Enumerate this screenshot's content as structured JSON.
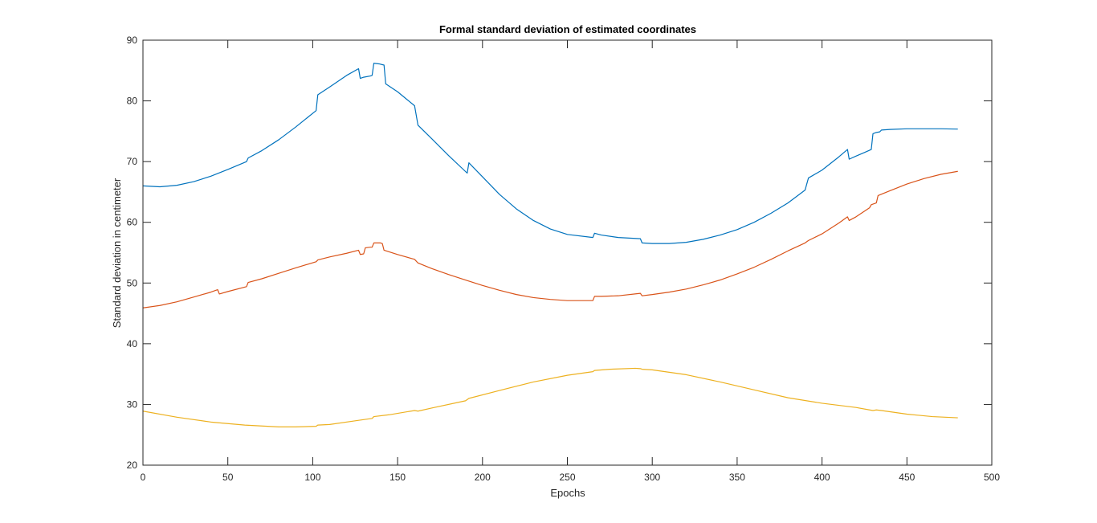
{
  "chart_data": {
    "type": "line",
    "title": "Formal standard deviation of estimated coordinates",
    "xlabel": "Epochs",
    "ylabel": "Standard deviation in centimeter",
    "xlim": [
      0,
      500
    ],
    "ylim": [
      20,
      90
    ],
    "xticks": [
      0,
      50,
      100,
      150,
      200,
      250,
      300,
      350,
      400,
      450,
      500
    ],
    "yticks": [
      20,
      30,
      40,
      50,
      60,
      70,
      80,
      90
    ],
    "grid": false,
    "box": true,
    "series": [
      {
        "color": "#0072BD",
        "points": [
          [
            0,
            66.0
          ],
          [
            10,
            65.85
          ],
          [
            20,
            66.1
          ],
          [
            30,
            66.7
          ],
          [
            40,
            67.6
          ],
          [
            50,
            68.7
          ],
          [
            61,
            70.0
          ],
          [
            62,
            70.6
          ],
          [
            70,
            71.8
          ],
          [
            80,
            73.6
          ],
          [
            90,
            75.7
          ],
          [
            102,
            78.4
          ],
          [
            103,
            81.0
          ],
          [
            110,
            82.3
          ],
          [
            120,
            84.2
          ],
          [
            127,
            85.3
          ],
          [
            128,
            83.7
          ],
          [
            130,
            83.9
          ],
          [
            134,
            84.1
          ],
          [
            135,
            84.2
          ],
          [
            136,
            86.2
          ],
          [
            139,
            86.1
          ],
          [
            142,
            85.9
          ],
          [
            143,
            82.8
          ],
          [
            150,
            81.5
          ],
          [
            160,
            79.2
          ],
          [
            162,
            76.0
          ],
          [
            170,
            73.8
          ],
          [
            180,
            71.0
          ],
          [
            191,
            68.1
          ],
          [
            192,
            69.8
          ],
          [
            200,
            67.5
          ],
          [
            210,
            64.6
          ],
          [
            220,
            62.2
          ],
          [
            230,
            60.3
          ],
          [
            240,
            58.9
          ],
          [
            250,
            58.0
          ],
          [
            265,
            57.5
          ],
          [
            266,
            58.2
          ],
          [
            270,
            57.9
          ],
          [
            280,
            57.5
          ],
          [
            293,
            57.3
          ],
          [
            294,
            56.6
          ],
          [
            300,
            56.5
          ],
          [
            310,
            56.5
          ],
          [
            320,
            56.7
          ],
          [
            330,
            57.2
          ],
          [
            340,
            57.9
          ],
          [
            350,
            58.8
          ],
          [
            360,
            60.0
          ],
          [
            370,
            61.5
          ],
          [
            380,
            63.2
          ],
          [
            390,
            65.3
          ],
          [
            392,
            67.3
          ],
          [
            400,
            68.6
          ],
          [
            410,
            70.8
          ],
          [
            415,
            72.0
          ],
          [
            416,
            70.4
          ],
          [
            420,
            70.9
          ],
          [
            425,
            71.5
          ],
          [
            429,
            72.0
          ],
          [
            430,
            74.6
          ],
          [
            432,
            74.8
          ],
          [
            434,
            74.9
          ],
          [
            435,
            75.2
          ],
          [
            440,
            75.3
          ],
          [
            450,
            75.4
          ],
          [
            460,
            75.4
          ],
          [
            470,
            75.4
          ],
          [
            480,
            75.35
          ]
        ]
      },
      {
        "color": "#D95319",
        "points": [
          [
            0,
            45.9
          ],
          [
            10,
            46.3
          ],
          [
            20,
            46.9
          ],
          [
            30,
            47.7
          ],
          [
            40,
            48.5
          ],
          [
            44,
            48.9
          ],
          [
            45,
            48.2
          ],
          [
            50,
            48.6
          ],
          [
            61,
            49.4
          ],
          [
            62,
            50.1
          ],
          [
            70,
            50.7
          ],
          [
            80,
            51.6
          ],
          [
            90,
            52.5
          ],
          [
            102,
            53.5
          ],
          [
            103,
            53.8
          ],
          [
            110,
            54.3
          ],
          [
            120,
            54.9
          ],
          [
            127,
            55.4
          ],
          [
            128,
            54.7
          ],
          [
            130,
            54.8
          ],
          [
            131,
            55.8
          ],
          [
            134,
            55.9
          ],
          [
            135,
            55.9
          ],
          [
            136,
            56.6
          ],
          [
            140,
            56.6
          ],
          [
            141,
            56.5
          ],
          [
            142,
            55.4
          ],
          [
            150,
            54.7
          ],
          [
            160,
            53.9
          ],
          [
            162,
            53.3
          ],
          [
            170,
            52.4
          ],
          [
            180,
            51.4
          ],
          [
            190,
            50.5
          ],
          [
            200,
            49.6
          ],
          [
            210,
            48.8
          ],
          [
            220,
            48.1
          ],
          [
            230,
            47.6
          ],
          [
            240,
            47.3
          ],
          [
            250,
            47.1
          ],
          [
            265,
            47.1
          ],
          [
            266,
            47.8
          ],
          [
            270,
            47.8
          ],
          [
            280,
            47.9
          ],
          [
            293,
            48.3
          ],
          [
            294,
            47.9
          ],
          [
            300,
            48.1
          ],
          [
            310,
            48.5
          ],
          [
            320,
            49.0
          ],
          [
            330,
            49.7
          ],
          [
            340,
            50.5
          ],
          [
            350,
            51.5
          ],
          [
            360,
            52.6
          ],
          [
            370,
            53.9
          ],
          [
            380,
            55.3
          ],
          [
            390,
            56.6
          ],
          [
            392,
            57.0
          ],
          [
            400,
            58.1
          ],
          [
            410,
            59.9
          ],
          [
            415,
            60.9
          ],
          [
            416,
            60.3
          ],
          [
            420,
            60.9
          ],
          [
            428,
            62.4
          ],
          [
            429,
            62.9
          ],
          [
            432,
            63.2
          ],
          [
            433,
            64.4
          ],
          [
            440,
            65.2
          ],
          [
            450,
            66.3
          ],
          [
            460,
            67.2
          ],
          [
            470,
            67.9
          ],
          [
            480,
            68.4
          ]
        ]
      },
      {
        "color": "#EDB120",
        "points": [
          [
            0,
            28.9
          ],
          [
            20,
            27.9
          ],
          [
            40,
            27.1
          ],
          [
            60,
            26.6
          ],
          [
            80,
            26.3
          ],
          [
            90,
            26.3
          ],
          [
            102,
            26.4
          ],
          [
            103,
            26.6
          ],
          [
            110,
            26.7
          ],
          [
            125,
            27.3
          ],
          [
            135,
            27.7
          ],
          [
            136,
            28.0
          ],
          [
            145,
            28.3
          ],
          [
            160,
            29.0
          ],
          [
            162,
            28.9
          ],
          [
            170,
            29.4
          ],
          [
            190,
            30.6
          ],
          [
            192,
            31.0
          ],
          [
            210,
            32.3
          ],
          [
            230,
            33.7
          ],
          [
            250,
            34.8
          ],
          [
            265,
            35.4
          ],
          [
            266,
            35.6
          ],
          [
            275,
            35.8
          ],
          [
            290,
            35.95
          ],
          [
            293,
            35.9
          ],
          [
            294,
            35.8
          ],
          [
            300,
            35.7
          ],
          [
            320,
            34.9
          ],
          [
            340,
            33.7
          ],
          [
            360,
            32.4
          ],
          [
            380,
            31.1
          ],
          [
            400,
            30.2
          ],
          [
            420,
            29.5
          ],
          [
            430,
            29.0
          ],
          [
            432,
            29.1
          ],
          [
            435,
            29.0
          ],
          [
            450,
            28.4
          ],
          [
            465,
            28.0
          ],
          [
            480,
            27.8
          ]
        ]
      }
    ]
  }
}
